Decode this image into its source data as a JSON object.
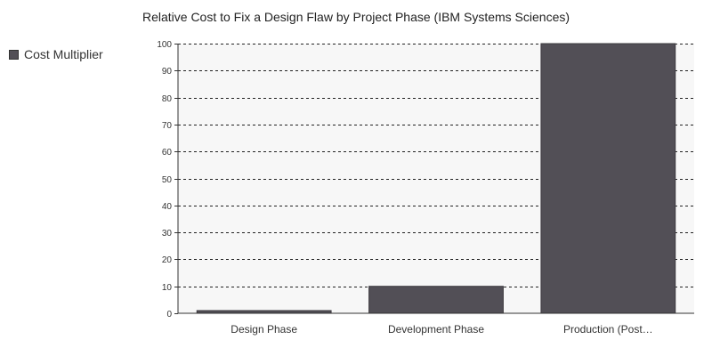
{
  "chart_data": {
    "type": "bar",
    "title": "Relative Cost to Fix a Design Flaw by Project Phase (IBM Systems Sciences)",
    "xlabel": "",
    "ylabel": "",
    "categories": [
      "Design Phase",
      "Development Phase",
      "Production (Post…"
    ],
    "series": [
      {
        "name": "Cost Multiplier",
        "values": [
          1,
          10,
          100
        ]
      }
    ],
    "ylim": [
      0,
      100
    ],
    "yticks": [
      0,
      10,
      20,
      30,
      40,
      50,
      60,
      70,
      80,
      90,
      100
    ],
    "grid": true,
    "legend_position": "top-left",
    "colors": {
      "bar": "#524f56",
      "bar_stroke": "#3b383e",
      "plot_background": "#f7f7f7",
      "grid": "#222222"
    }
  }
}
